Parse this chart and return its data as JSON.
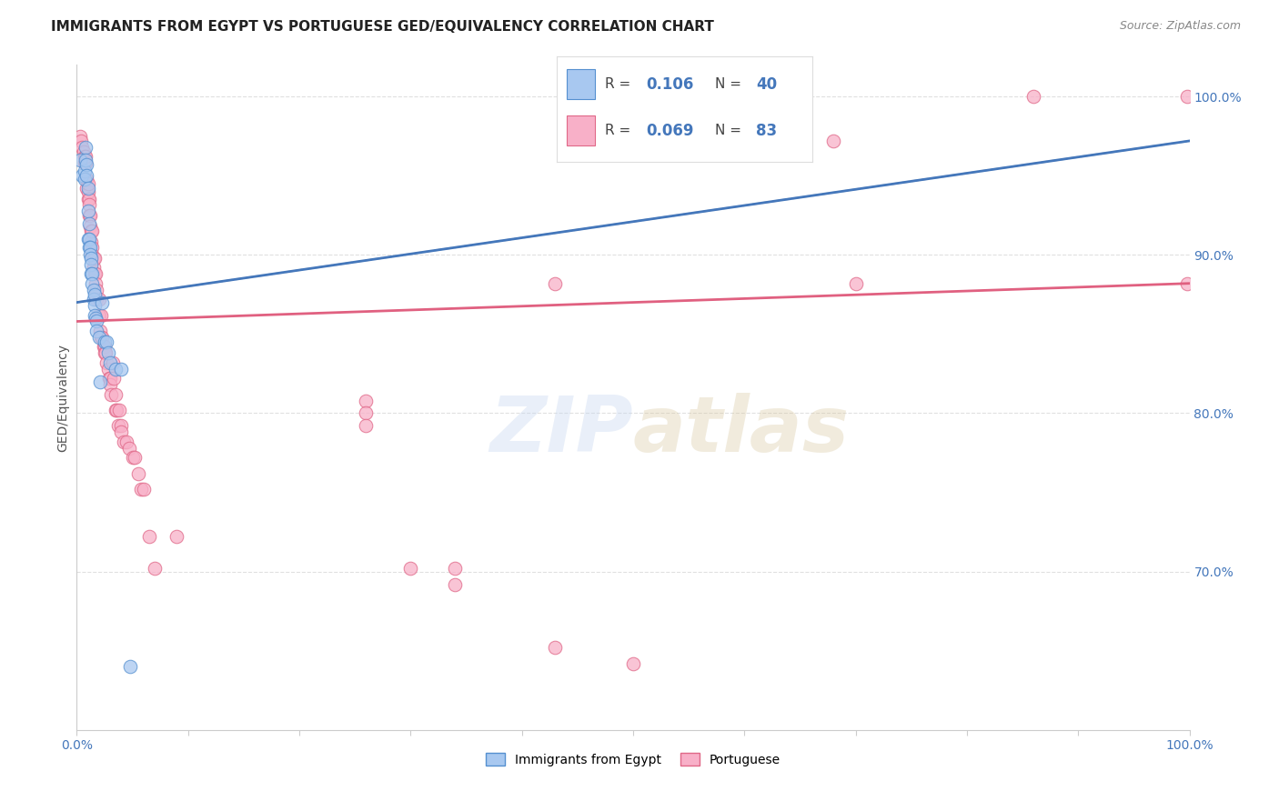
{
  "title": "IMMIGRANTS FROM EGYPT VS PORTUGUESE GED/EQUIVALENCY CORRELATION CHART",
  "source": "Source: ZipAtlas.com",
  "ylabel": "GED/Equivalency",
  "legend1_R": "0.106",
  "legend1_N": "40",
  "legend2_R": "0.069",
  "legend2_N": "83",
  "legend1_label": "Immigrants from Egypt",
  "legend2_label": "Portuguese",
  "blue_color": "#a8c8f0",
  "blue_edge_color": "#5590d0",
  "blue_line_color": "#4477bb",
  "pink_color": "#f8b0c8",
  "pink_edge_color": "#e06888",
  "pink_line_color": "#e06080",
  "dash_color": "#bbbbbb",
  "watermark_color": "#c8d8f0",
  "blue_scatter_x": [
    0.003,
    0.005,
    0.007,
    0.007,
    0.008,
    0.008,
    0.009,
    0.009,
    0.01,
    0.01,
    0.01,
    0.011,
    0.011,
    0.011,
    0.012,
    0.012,
    0.013,
    0.013,
    0.013,
    0.014,
    0.014,
    0.015,
    0.015,
    0.016,
    0.016,
    0.016,
    0.017,
    0.018,
    0.018,
    0.02,
    0.021,
    0.023,
    0.025,
    0.027,
    0.028,
    0.03,
    0.035,
    0.04,
    0.048,
    0.48
  ],
  "blue_scatter_y": [
    0.96,
    0.95,
    0.953,
    0.948,
    0.968,
    0.96,
    0.957,
    0.95,
    0.942,
    0.928,
    0.91,
    0.92,
    0.91,
    0.905,
    0.905,
    0.9,
    0.898,
    0.894,
    0.888,
    0.888,
    0.882,
    0.878,
    0.872,
    0.875,
    0.868,
    0.862,
    0.86,
    0.858,
    0.852,
    0.848,
    0.82,
    0.87,
    0.845,
    0.845,
    0.838,
    0.832,
    0.828,
    0.828,
    0.64,
    1.0
  ],
  "pink_scatter_x": [
    0.003,
    0.004,
    0.005,
    0.006,
    0.007,
    0.007,
    0.008,
    0.008,
    0.009,
    0.009,
    0.01,
    0.01,
    0.01,
    0.011,
    0.011,
    0.011,
    0.012,
    0.012,
    0.013,
    0.013,
    0.014,
    0.014,
    0.014,
    0.015,
    0.015,
    0.016,
    0.016,
    0.017,
    0.017,
    0.018,
    0.018,
    0.019,
    0.02,
    0.02,
    0.021,
    0.022,
    0.022,
    0.023,
    0.024,
    0.025,
    0.025,
    0.026,
    0.027,
    0.028,
    0.029,
    0.03,
    0.03,
    0.031,
    0.032,
    0.033,
    0.035,
    0.035,
    0.036,
    0.037,
    0.038,
    0.04,
    0.04,
    0.042,
    0.045,
    0.047,
    0.05,
    0.052,
    0.055,
    0.058,
    0.06,
    0.065,
    0.07,
    0.09,
    0.26,
    0.26,
    0.26,
    0.3,
    0.34,
    0.34,
    0.43,
    0.43,
    0.5,
    0.62,
    0.68,
    0.7,
    0.86,
    0.998,
    0.998
  ],
  "pink_scatter_y": [
    0.975,
    0.972,
    0.968,
    0.965,
    0.962,
    0.958,
    0.958,
    0.962,
    0.948,
    0.942,
    0.935,
    0.94,
    0.945,
    0.935,
    0.932,
    0.925,
    0.925,
    0.918,
    0.915,
    0.908,
    0.915,
    0.905,
    0.9,
    0.898,
    0.892,
    0.898,
    0.888,
    0.888,
    0.882,
    0.878,
    0.872,
    0.862,
    0.872,
    0.862,
    0.852,
    0.862,
    0.848,
    0.848,
    0.842,
    0.842,
    0.838,
    0.838,
    0.832,
    0.828,
    0.822,
    0.822,
    0.818,
    0.812,
    0.832,
    0.822,
    0.812,
    0.802,
    0.802,
    0.792,
    0.802,
    0.792,
    0.788,
    0.782,
    0.782,
    0.778,
    0.772,
    0.772,
    0.762,
    0.752,
    0.752,
    0.722,
    0.702,
    0.722,
    0.808,
    0.8,
    0.792,
    0.702,
    0.702,
    0.692,
    0.882,
    0.652,
    0.642,
    0.972,
    0.972,
    0.882,
    1.0,
    0.882,
    1.0
  ],
  "background_color": "#ffffff",
  "grid_color": "#e0e0e0",
  "xlim": [
    0.0,
    1.0
  ],
  "ylim": [
    0.6,
    1.02
  ],
  "yticks": [
    0.7,
    0.8,
    0.9,
    1.0
  ],
  "ytick_labels": [
    "70.0%",
    "80.0%",
    "90.0%",
    "100.0%"
  ],
  "xtick_positions": [
    0.0,
    0.1,
    0.2,
    0.3,
    0.4,
    0.5,
    0.6,
    0.7,
    0.8,
    0.9,
    1.0
  ],
  "blue_trendline_x0": 0.0,
  "blue_trendline_x1": 1.0,
  "blue_trendline_y0": 0.87,
  "blue_trendline_y1": 0.972,
  "dash_trendline_y0": 0.87,
  "dash_trendline_y1": 0.972,
  "pink_trendline_y0": 0.858,
  "pink_trendline_y1": 0.882
}
